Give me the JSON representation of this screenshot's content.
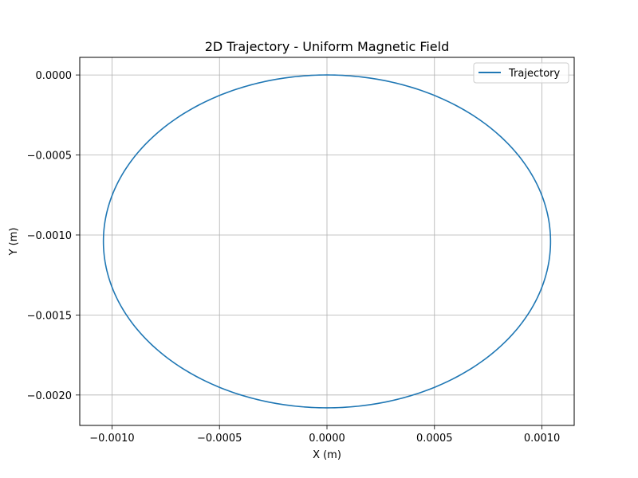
{
  "chart_data": {
    "type": "line",
    "title": "2D Trajectory - Uniform Magnetic Field",
    "xlabel": "X (m)",
    "ylabel": "Y (m)",
    "xlim": [
      -0.00115,
      0.00115
    ],
    "ylim": [
      -0.00219,
      0.00011
    ],
    "xticks": [
      -0.001,
      -0.0005,
      0.0,
      0.0005,
      0.001
    ],
    "xtick_labels": [
      "−0.0010",
      "−0.0005",
      "0.0000",
      "0.0005",
      "0.0010"
    ],
    "yticks": [
      0.0,
      -0.0005,
      -0.001,
      -0.0015,
      -0.002
    ],
    "ytick_labels": [
      "0.0000",
      "−0.0005",
      "−0.0010",
      "−0.0015",
      "−0.0020"
    ],
    "grid": true,
    "legend_position": "top-right",
    "series": [
      {
        "name": "Trajectory",
        "color": "#1f77b4",
        "shape": "circle",
        "center": [
          0.0,
          -0.00104
        ],
        "radius_x": 0.00104,
        "radius_y": 0.00104,
        "start": [
          0.0,
          0.0
        ]
      }
    ]
  }
}
